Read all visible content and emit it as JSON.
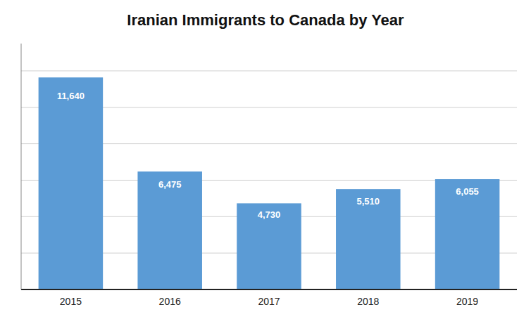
{
  "chart_data": {
    "type": "bar",
    "title": "Iranian Immigrants to Canada by Year",
    "categories": [
      "2015",
      "2016",
      "2017",
      "2018",
      "2019"
    ],
    "values": [
      11640,
      6475,
      4730,
      5510,
      6055
    ],
    "value_labels": [
      "11,640",
      "6,475",
      "4,730",
      "5,510",
      "6,055"
    ],
    "color": "#5B9BD5",
    "ylim": [
      0,
      13500
    ],
    "yticks": [
      2000,
      4000,
      6000,
      8000,
      10000,
      12000
    ],
    "grid": true,
    "data_labels": true,
    "tick_labels": "x"
  }
}
